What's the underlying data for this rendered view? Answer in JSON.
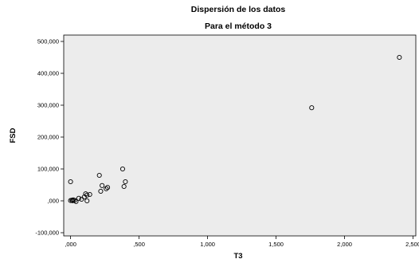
{
  "chart_data": {
    "type": "scatter",
    "title": "Dispersión de los datos",
    "subtitle": "Para el método 3",
    "xlabel": "T3",
    "ylabel": "FSD",
    "xlim": [
      -0.05,
      2.52
    ],
    "ylim": [
      -110000,
      520000
    ],
    "x_ticks": [
      0,
      0.5,
      1.0,
      1.5,
      2.0,
      2.5
    ],
    "x_tick_labels": [
      ",000",
      ",500",
      "1,000",
      "1,500",
      "2,000",
      "2,500"
    ],
    "y_ticks": [
      -100000,
      0,
      100000,
      200000,
      300000,
      400000,
      500000
    ],
    "y_tick_labels": [
      "-100,000",
      ",000",
      "100,000",
      "200,000",
      "300,000",
      "400,000",
      "500,000"
    ],
    "grid": false,
    "colors": {
      "plot_background": "#ececec",
      "marker": "#000000"
    },
    "points": [
      {
        "x": 0.0,
        "y": 60000
      },
      {
        "x": 0.0,
        "y": 1000
      },
      {
        "x": 0.01,
        "y": 2000
      },
      {
        "x": 0.015,
        "y": 500
      },
      {
        "x": 0.02,
        "y": 3000
      },
      {
        "x": 0.03,
        "y": 1500
      },
      {
        "x": 0.04,
        "y": -2000
      },
      {
        "x": 0.06,
        "y": 8000
      },
      {
        "x": 0.08,
        "y": 5000
      },
      {
        "x": 0.1,
        "y": 12000
      },
      {
        "x": 0.11,
        "y": 22000
      },
      {
        "x": 0.12,
        "y": 18000
      },
      {
        "x": 0.12,
        "y": 0
      },
      {
        "x": 0.14,
        "y": 20000
      },
      {
        "x": 0.21,
        "y": 80000
      },
      {
        "x": 0.22,
        "y": 30000
      },
      {
        "x": 0.23,
        "y": 48000
      },
      {
        "x": 0.26,
        "y": 38000
      },
      {
        "x": 0.27,
        "y": 42000
      },
      {
        "x": 0.38,
        "y": 100000
      },
      {
        "x": 0.39,
        "y": 45000
      },
      {
        "x": 0.4,
        "y": 60000
      },
      {
        "x": 1.76,
        "y": 292000
      },
      {
        "x": 2.4,
        "y": 450000
      }
    ]
  }
}
